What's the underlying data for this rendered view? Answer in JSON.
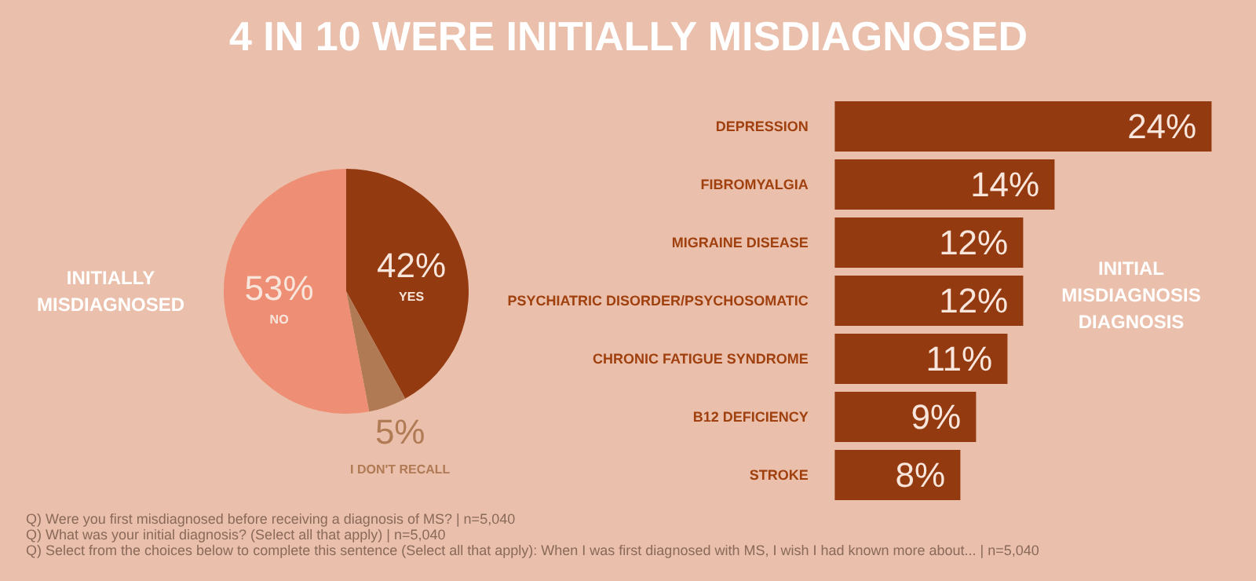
{
  "chart_data": [
    {
      "type": "other",
      "title": "4 IN 10 WERE INITIALLY MISDIAGNOSED",
      "annotations": [
        "Q) Were you first misdiagnosed before receiving a diagnosis of MS? | n=5,040",
        "Q) What was your initial diagnosis? (Select all that apply) | n=5,040",
        "Q) Select from the choices below to complete this sentence (Select all that apply): When I was first diagnosed with MS, I wish I had known more about... | n=5,040"
      ]
    },
    {
      "type": "pie",
      "annotations": [
        "INITIALLY\nMISDIAGNOSED"
      ],
      "categories": [
        "YES",
        "I DON'T RECALL",
        "NO"
      ],
      "values": [
        42,
        5,
        53
      ],
      "colors": [
        "#943a10",
        "#b07a55",
        "#ee8e74"
      ],
      "value_labels": [
        "42%",
        "5%",
        "53%"
      ]
    },
    {
      "type": "bar",
      "orientation": "horizontal",
      "annotations": [
        "INITIAL\nMISDIAGNOSIS\nDIAGNOSIS"
      ],
      "categories": [
        "DEPRESSION",
        "FIBROMYALGIA",
        "MIGRAINE DISEASE",
        "PSYCHIATRIC DISORDER/PSYCHOSOMATIC",
        "CHRONIC FATIGUE SYNDROME",
        "B12 DEFICIENCY",
        "STROKE"
      ],
      "values": [
        24,
        14,
        12,
        12,
        11,
        9,
        8
      ],
      "color": "#943a10",
      "value_labels": [
        "24%",
        "14%",
        "12%",
        "12%",
        "11%",
        "9%",
        "8%"
      ]
    }
  ]
}
